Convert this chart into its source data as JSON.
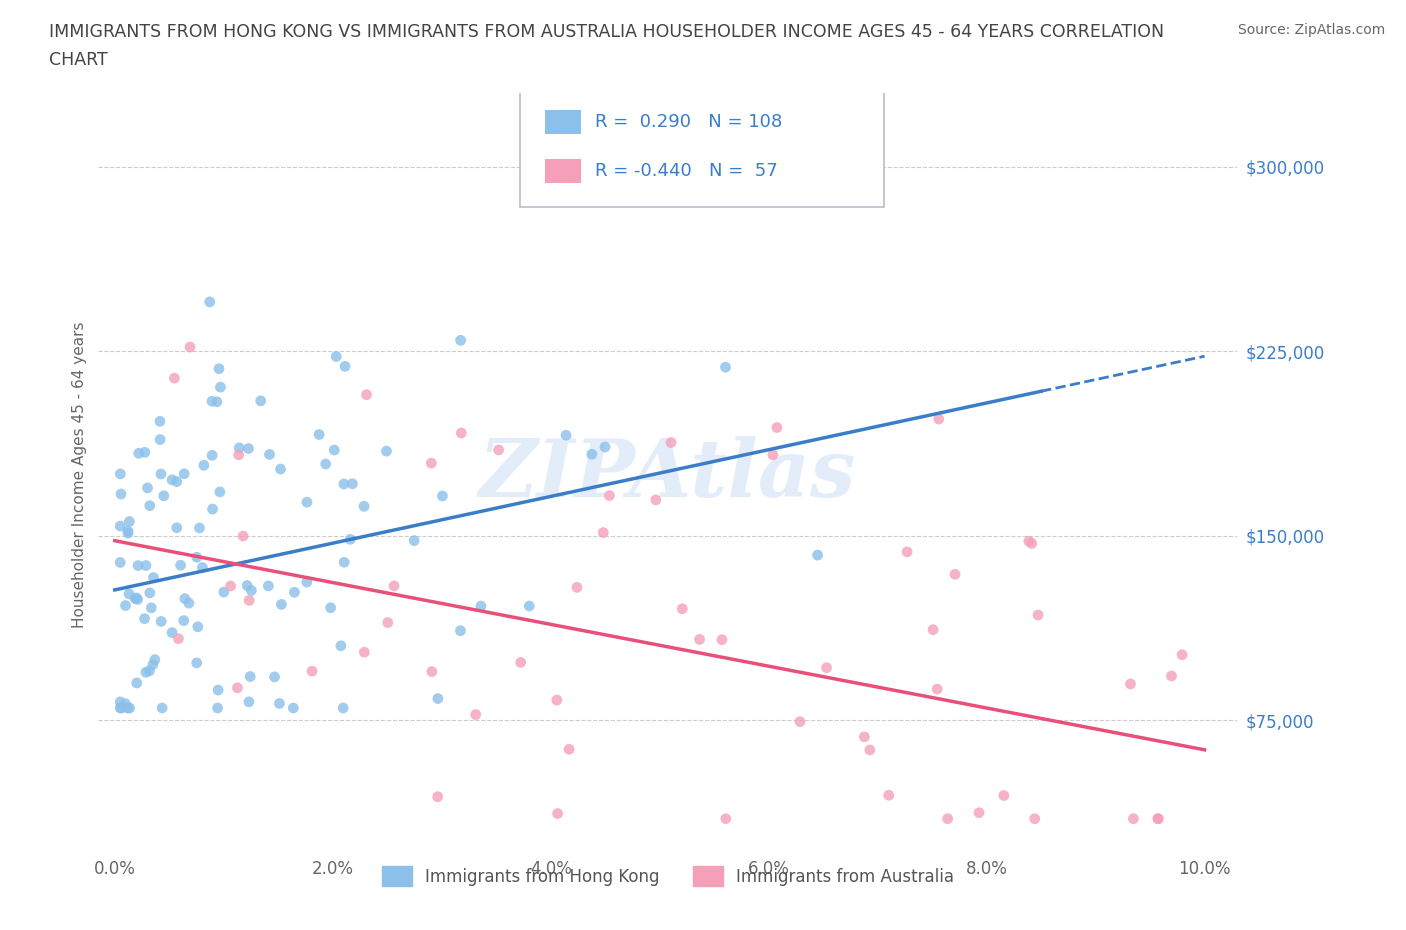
{
  "title_line1": "IMMIGRANTS FROM HONG KONG VS IMMIGRANTS FROM AUSTRALIA HOUSEHOLDER INCOME AGES 45 - 64 YEARS CORRELATION",
  "title_line2": "CHART",
  "source": "Source: ZipAtlas.com",
  "ylabel": "Householder Income Ages 45 - 64 years",
  "xlim": [
    -0.15,
    10.3
  ],
  "ylim": [
    20000,
    330000
  ],
  "yticks": [
    75000,
    150000,
    225000,
    300000
  ],
  "ytick_labels": [
    "$75,000",
    "$150,000",
    "$225,000",
    "$300,000"
  ],
  "xticks": [
    0.0,
    2.0,
    4.0,
    6.0,
    8.0,
    10.0
  ],
  "xtick_labels": [
    "0.0%",
    "2.0%",
    "4.0%",
    "6.0%",
    "8.0%",
    "10.0%"
  ],
  "hk_color": "#8ac0ea",
  "aus_color": "#f5a0b8",
  "hk_line_color": "#3a7dc9",
  "aus_line_color": "#e8507a",
  "hk_R": 0.29,
  "hk_N": 108,
  "aus_R": -0.44,
  "aus_N": 57,
  "legend_label_hk": "Immigrants from Hong Kong",
  "legend_label_aus": "Immigrants from Australia",
  "watermark": "ZIPAtlas",
  "background_color": "#ffffff",
  "grid_color": "#cccccc",
  "title_color": "#444444",
  "axis_label_color": "#666666",
  "tick_color": "#666666",
  "legend_r_color": "#3a7dc9",
  "legend_text_color": "#555555",
  "hk_line_intercept": 128000,
  "hk_line_slope": 9500,
  "aus_line_intercept": 148000,
  "aus_line_slope": -8500
}
